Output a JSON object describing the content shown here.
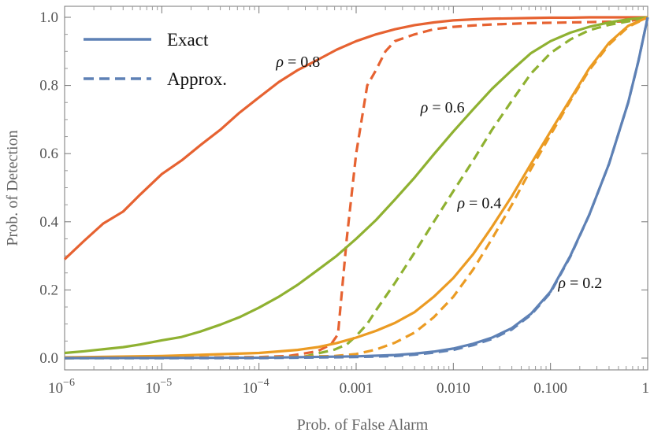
{
  "chart_data": {
    "type": "line",
    "xlabel": "Prob. of False Alarm",
    "ylabel": "Prob. of Detection",
    "xscale": "log",
    "xlim": [
      1e-06,
      1
    ],
    "ylim": [
      0,
      1
    ],
    "xticks": [
      {
        "value": 1e-06,
        "base": "10",
        "exp": "−6"
      },
      {
        "value": 1e-05,
        "base": "10",
        "exp": "−5"
      },
      {
        "value": 0.0001,
        "base": "10",
        "exp": "−4"
      },
      {
        "value": 0.001,
        "text": "0.001"
      },
      {
        "value": 0.01,
        "text": "0.010"
      },
      {
        "value": 0.1,
        "text": "0.100"
      },
      {
        "value": 1,
        "text": "1"
      }
    ],
    "yticks": [
      {
        "value": 0,
        "text": "0.0"
      },
      {
        "value": 0.2,
        "text": "0.2"
      },
      {
        "value": 0.4,
        "text": "0.4"
      },
      {
        "value": 0.6,
        "text": "0.6"
      },
      {
        "value": 0.8,
        "text": "0.8"
      },
      {
        "value": 1,
        "text": "1.0"
      }
    ],
    "legend": {
      "placement": "top-left",
      "entries": [
        {
          "label": "Exact",
          "style": "solid",
          "color": "#5e81b5"
        },
        {
          "label": "Approx.",
          "style": "dashed",
          "color": "#5e81b5"
        }
      ]
    },
    "annotations": [
      {
        "symbol": "ρ",
        "text": " = 0.8",
        "x": 0.00015,
        "y": 0.855
      },
      {
        "symbol": "ρ",
        "text": " = 0.6",
        "x": 0.0046,
        "y": 0.72
      },
      {
        "symbol": "ρ",
        "text": " = 0.4",
        "x": 0.011,
        "y": 0.44
      },
      {
        "symbol": "ρ",
        "text": " = 0.2",
        "x": 0.12,
        "y": 0.205
      }
    ],
    "series": [
      {
        "name": "ρ = 0.8 exact",
        "color": "#e66231",
        "style": "solid",
        "x": [
          1e-06,
          1.6e-06,
          2.5e-06,
          4e-06,
          6e-06,
          1e-05,
          1.6e-05,
          2.5e-05,
          4e-05,
          6.3e-05,
          0.0001,
          0.00016,
          0.00025,
          0.0004,
          0.00063,
          0.001,
          0.0016,
          0.0025,
          0.004,
          0.0063,
          0.01,
          0.016,
          0.025,
          0.04,
          0.063,
          0.1,
          0.16,
          0.25,
          0.4,
          0.63,
          1
        ],
        "y": [
          0.29,
          0.345,
          0.395,
          0.43,
          0.48,
          0.54,
          0.58,
          0.625,
          0.67,
          0.72,
          0.765,
          0.81,
          0.845,
          0.875,
          0.905,
          0.93,
          0.95,
          0.965,
          0.977,
          0.985,
          0.991,
          0.994,
          0.996,
          0.997,
          0.998,
          0.999,
          0.999,
          1.0,
          1.0,
          1.0,
          1.0
        ]
      },
      {
        "name": "ρ = 0.8 approx",
        "color": "#e66231",
        "style": "dashed",
        "x": [
          1e-06,
          1e-05,
          0.0001,
          0.0002,
          0.0004,
          0.00055,
          0.00065,
          0.0008,
          0.001,
          0.0013,
          0.0016,
          0.002,
          0.0025,
          0.004,
          0.0063,
          0.01,
          0.016,
          0.025,
          0.04,
          0.063,
          0.1,
          0.16,
          0.25,
          0.4,
          0.63,
          1
        ],
        "y": [
          0.0,
          0.001,
          0.003,
          0.006,
          0.02,
          0.04,
          0.07,
          0.35,
          0.6,
          0.8,
          0.845,
          0.9,
          0.93,
          0.95,
          0.965,
          0.972,
          0.976,
          0.979,
          0.981,
          0.983,
          0.984,
          0.985,
          0.986,
          0.987,
          0.988,
          1.0
        ]
      },
      {
        "name": "ρ = 0.6 exact",
        "color": "#8fb131",
        "style": "solid",
        "x": [
          1e-06,
          1.6e-06,
          2.5e-06,
          4e-06,
          6e-06,
          1e-05,
          1.6e-05,
          2.5e-05,
          4e-05,
          6.3e-05,
          0.0001,
          0.00016,
          0.00025,
          0.0004,
          0.00063,
          0.001,
          0.0016,
          0.0025,
          0.004,
          0.0063,
          0.01,
          0.016,
          0.025,
          0.04,
          0.063,
          0.1,
          0.16,
          0.25,
          0.4,
          0.63,
          1
        ],
        "y": [
          0.015,
          0.02,
          0.026,
          0.032,
          0.04,
          0.052,
          0.062,
          0.078,
          0.098,
          0.12,
          0.148,
          0.18,
          0.215,
          0.258,
          0.3,
          0.35,
          0.405,
          0.465,
          0.53,
          0.598,
          0.665,
          0.73,
          0.79,
          0.845,
          0.895,
          0.93,
          0.955,
          0.972,
          0.985,
          0.994,
          1.0
        ]
      },
      {
        "name": "ρ = 0.6 approx",
        "color": "#8fb131",
        "style": "dashed",
        "x": [
          1e-06,
          1e-05,
          0.0001,
          0.0003,
          0.0006,
          0.0008,
          0.001,
          0.0013,
          0.0016,
          0.002,
          0.0025,
          0.004,
          0.0063,
          0.01,
          0.016,
          0.025,
          0.04,
          0.063,
          0.1,
          0.16,
          0.25,
          0.4,
          0.63,
          1
        ],
        "y": [
          0.0,
          0.0,
          0.001,
          0.005,
          0.025,
          0.04,
          0.065,
          0.1,
          0.14,
          0.18,
          0.22,
          0.31,
          0.4,
          0.49,
          0.58,
          0.67,
          0.755,
          0.835,
          0.895,
          0.935,
          0.962,
          0.978,
          0.988,
          1.0
        ]
      },
      {
        "name": "ρ = 0.4 exact",
        "color": "#eb9b23",
        "style": "solid",
        "x": [
          1e-06,
          1e-05,
          0.0001,
          0.00025,
          0.0004,
          0.00063,
          0.001,
          0.0016,
          0.0025,
          0.004,
          0.0063,
          0.01,
          0.016,
          0.025,
          0.04,
          0.063,
          0.1,
          0.16,
          0.25,
          0.4,
          0.63,
          1
        ],
        "y": [
          0.002,
          0.006,
          0.015,
          0.024,
          0.032,
          0.044,
          0.06,
          0.08,
          0.103,
          0.135,
          0.18,
          0.235,
          0.305,
          0.385,
          0.475,
          0.57,
          0.665,
          0.76,
          0.85,
          0.925,
          0.975,
          1.0
        ]
      },
      {
        "name": "ρ = 0.4 approx",
        "color": "#eb9b23",
        "style": "dashed",
        "x": [
          1e-06,
          0.0001,
          0.0006,
          0.001,
          0.0016,
          0.0025,
          0.004,
          0.0063,
          0.01,
          0.016,
          0.025,
          0.04,
          0.063,
          0.1,
          0.16,
          0.25,
          0.4,
          0.63,
          1
        ],
        "y": [
          0.0,
          0.002,
          0.006,
          0.012,
          0.025,
          0.045,
          0.075,
          0.12,
          0.18,
          0.26,
          0.35,
          0.45,
          0.555,
          0.655,
          0.755,
          0.845,
          0.92,
          0.972,
          1.0
        ]
      },
      {
        "name": "ρ = 0.2 exact",
        "color": "#5e81b5",
        "style": "solid",
        "x": [
          1e-06,
          0.0001,
          0.001,
          0.0025,
          0.004,
          0.0063,
          0.01,
          0.016,
          0.025,
          0.04,
          0.063,
          0.1,
          0.16,
          0.25,
          0.4,
          0.63,
          0.8,
          1
        ],
        "y": [
          0.0,
          0.001,
          0.005,
          0.009,
          0.013,
          0.019,
          0.028,
          0.042,
          0.06,
          0.088,
          0.13,
          0.195,
          0.3,
          0.42,
          0.57,
          0.75,
          0.87,
          1.0
        ]
      },
      {
        "name": "ρ = 0.2 approx",
        "color": "#5e81b5",
        "style": "dashed",
        "x": [
          1e-06,
          0.0001,
          0.001,
          0.0025,
          0.004,
          0.0063,
          0.01,
          0.016,
          0.025,
          0.04,
          0.063,
          0.1,
          0.16,
          0.25,
          0.4,
          0.63,
          0.8,
          1
        ],
        "y": [
          0.0,
          0.0,
          0.003,
          0.006,
          0.01,
          0.016,
          0.024,
          0.038,
          0.056,
          0.084,
          0.127,
          0.192,
          0.298,
          0.42,
          0.57,
          0.75,
          0.87,
          1.0
        ]
      }
    ]
  }
}
